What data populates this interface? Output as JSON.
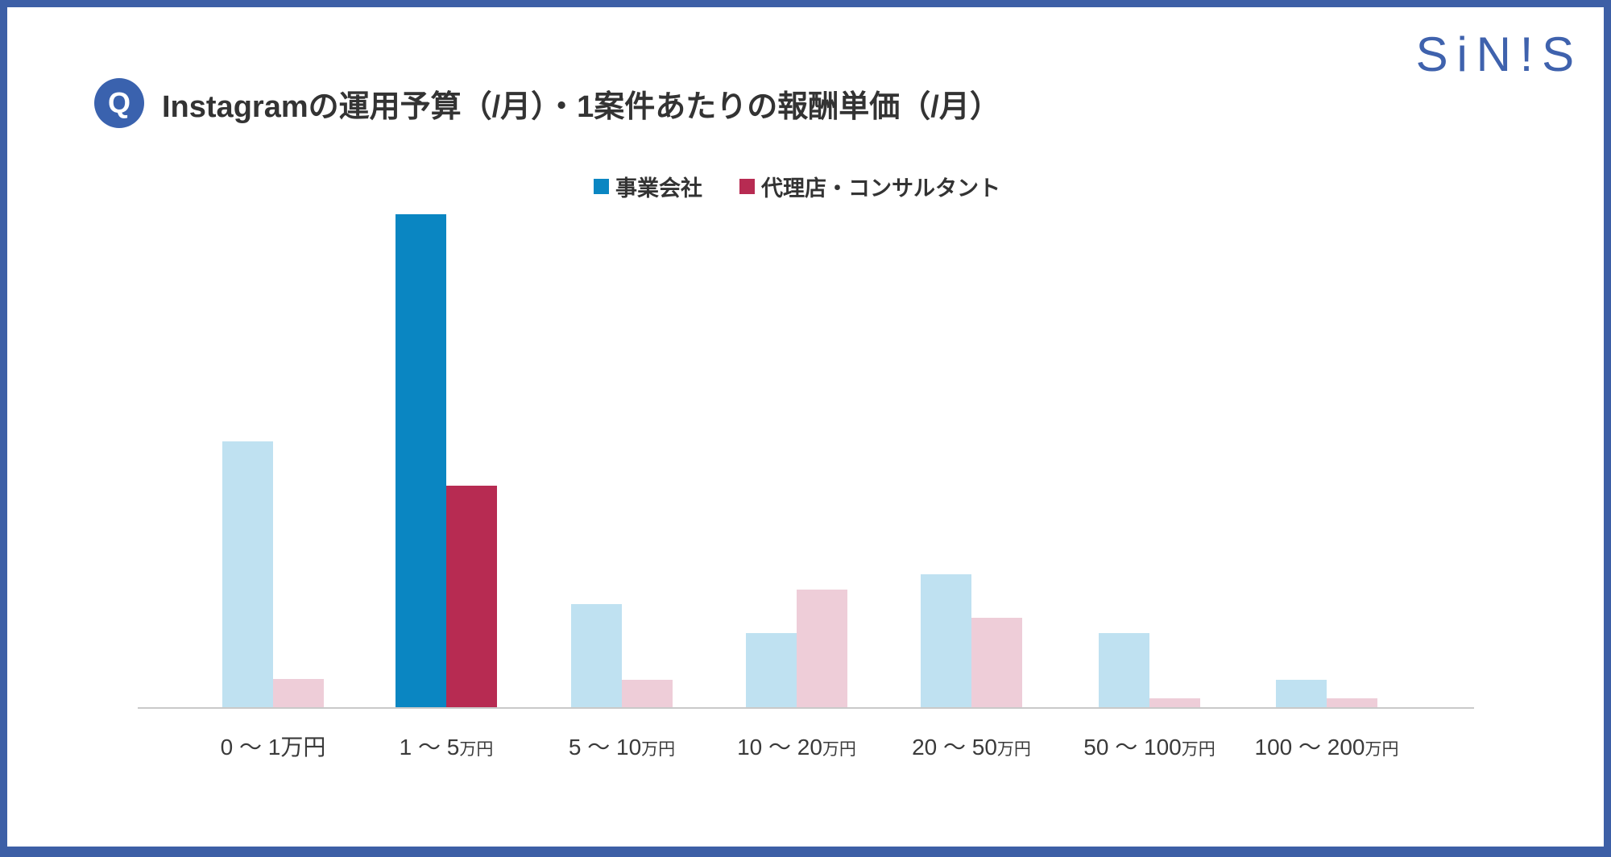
{
  "page": {
    "badge": "Q",
    "title": "Instagramの運用予算（/月）・1案件あたりの報酬単価（/月）",
    "logo": "SiN!S"
  },
  "colors": {
    "frame_blue": "#3d5fa6",
    "badge_blue": "#3a62ae",
    "logo_blue": "#3f62ad",
    "title_text": "#333333",
    "axis_line": "#c9c9c9",
    "series1_solid": "#0a86c2",
    "series1_muted": "#bfe1f1",
    "series2_solid": "#b72b52",
    "series2_muted": "#eecdd8"
  },
  "chart_data": {
    "type": "bar",
    "title": "Instagramの運用予算（/月）・1案件あたりの報酬単価（/月）",
    "categories": [
      "0 〜 1万円",
      "1 〜 5万円",
      "5 〜 10万円",
      "10 〜 20万円",
      "20 〜 50万円",
      "50 〜 100万円",
      "100 〜 200万円"
    ],
    "category_parts": [
      {
        "range": "0 〜 1",
        "unit": "万円"
      },
      {
        "range": "1 〜 5",
        "unit": "万円"
      },
      {
        "range": "5 〜 10",
        "unit": "万円"
      },
      {
        "range": "10 〜 20",
        "unit": "万円"
      },
      {
        "range": "20 〜 50",
        "unit": "万円"
      },
      {
        "range": "50 〜 100",
        "unit": "万円"
      },
      {
        "range": "100 〜 200",
        "unit": "万円"
      }
    ],
    "series": [
      {
        "name": "事業会社",
        "color": "#0a86c2",
        "muted_color": "#bfe1f1",
        "values": [
          53.9,
          100,
          20.9,
          15.0,
          27.0,
          15.0,
          5.6
        ]
      },
      {
        "name": "代理店・コンサルタント",
        "color": "#b72b52",
        "muted_color": "#eecdd8",
        "values": [
          5.7,
          44.9,
          5.6,
          23.9,
          18.1,
          1.8,
          1.8
        ]
      }
    ],
    "highlight_category_index": 1,
    "value_unit": "relative bar height, tallest bar = 100 (chart displays no y-axis, gridlines or data labels)",
    "xlabel": "",
    "ylabel": "",
    "grid": false,
    "legend_position": "top-center"
  }
}
